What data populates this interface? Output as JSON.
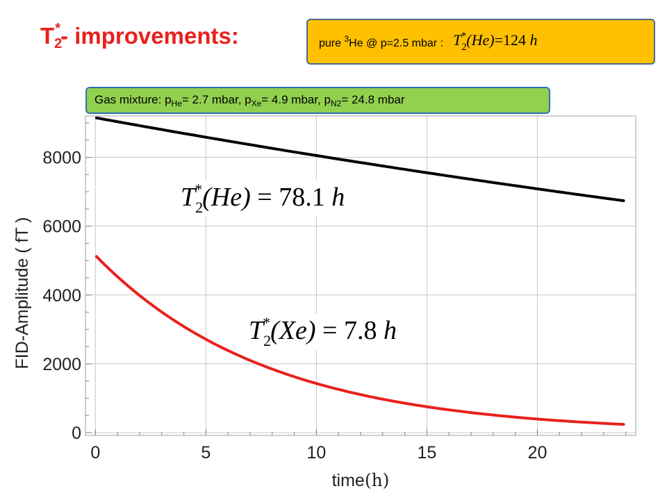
{
  "title": {
    "main": "T",
    "sub": "2",
    "sup": "*",
    "rest": "- improvements:"
  },
  "he_box": {
    "prefix": "pure ",
    "isotope_sup": "3",
    "text": "He @ p=2.5 mbar : ",
    "formula": {
      "T": "T",
      "sub": "2",
      "sup": "*",
      "arg": "(He)",
      "eq": "=124 ",
      "unit": "h"
    }
  },
  "mixture_box": {
    "label": "Gas mixture: p",
    "he_sub": "He",
    "he_val": "= 2.7 mbar, p",
    "xe_sub": "Xe",
    "xe_val": "= 4.9 mbar, p",
    "n2_sub": "N2",
    "n2_val": "= 24.8 mbar"
  },
  "formula_he": {
    "T": "T",
    "sub": "2",
    "sup": "*",
    "arg": "(He)",
    "eq": " = 78.1 ",
    "unit": "h"
  },
  "formula_xe": {
    "T": "T",
    "sub": "2",
    "sup": "*",
    "arg": "(Xe)",
    "eq": " = 7.8 ",
    "unit": "h"
  },
  "chart_data": {
    "type": "line",
    "xlabel": "time",
    "xlabel_unit": "(h)",
    "ylabel": "FID-Amplitude ( fT )",
    "xlim": [
      0,
      24
    ],
    "ylim": [
      0,
      9200
    ],
    "x_ticks": [
      0,
      5,
      10,
      15,
      20
    ],
    "y_ticks": [
      0,
      2000,
      4000,
      6000,
      8000
    ],
    "grid": true,
    "series": [
      {
        "color": "#000000",
        "A0": 9150,
        "T2_hours": 78.1,
        "x_start": 0.05,
        "x_end": 23.9
      },
      {
        "color": "#e8211d",
        "A0": 5150,
        "T2_hours": 7.8,
        "x_start": 0.05,
        "x_end": 23.9
      }
    ]
  }
}
